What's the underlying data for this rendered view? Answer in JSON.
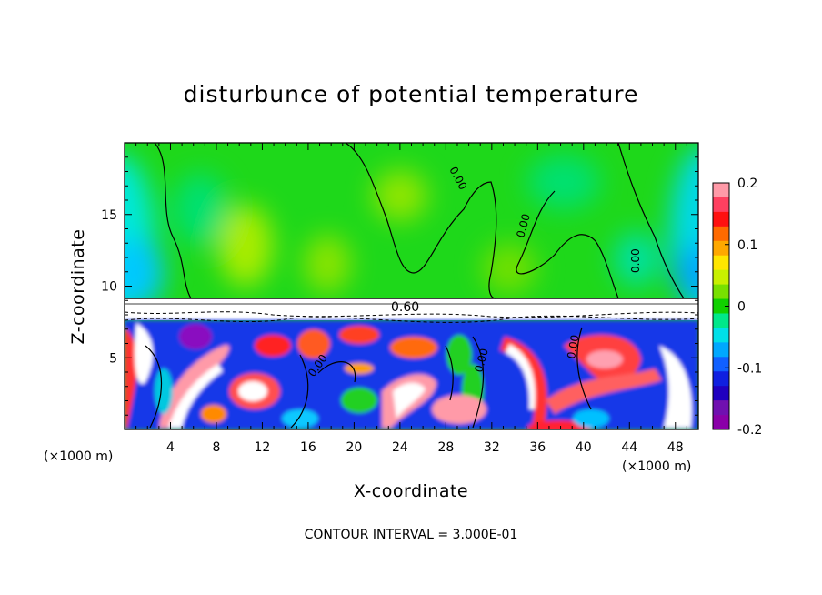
{
  "chart_data": {
    "type": "heatmap",
    "title": "disturbunce of potential temperature",
    "xlabel": "X-coordinate",
    "ylabel": "Z-coordinate",
    "x_unit": "(×1000 m)",
    "z_unit": "(×1000 m)",
    "xlim": [
      0,
      50
    ],
    "ylim": [
      0,
      20
    ],
    "x_ticks": [
      4,
      8,
      12,
      16,
      20,
      24,
      28,
      32,
      36,
      40,
      44,
      48
    ],
    "y_ticks": [
      5,
      10,
      15
    ],
    "colorbar": {
      "range": [
        -0.2,
        0.2
      ],
      "tick_values": [
        0.2,
        0.1,
        0,
        -0.1,
        -0.2
      ],
      "tick_labels": [
        "0.2",
        "0.1",
        "0",
        "-0.1",
        "-0.2"
      ],
      "colors": [
        "#ff9aa8",
        "#ff4060",
        "#ff1010",
        "#ff6a00",
        "#ffa800",
        "#ffe600",
        "#c8f000",
        "#78e000",
        "#10d000",
        "#00e88a",
        "#00e0e8",
        "#00a8ff",
        "#1060ff",
        "#1020e0",
        "#2000c0",
        "#7010b0",
        "#8a00a8"
      ]
    },
    "contour_labels": [
      "0.60",
      "0.00",
      "0.00",
      "0.00",
      "0.00",
      "0.00",
      "0.00"
    ],
    "footer": "CONTOUR INTERVAL = 3.000E-01"
  }
}
